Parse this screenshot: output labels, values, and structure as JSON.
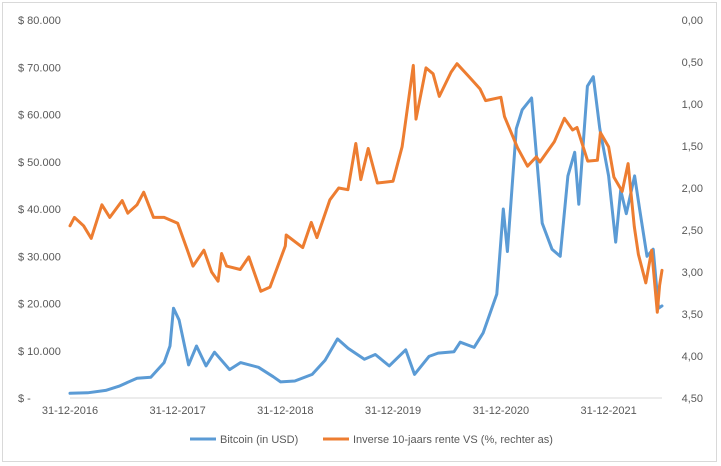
{
  "chart_data": {
    "type": "line",
    "title": "",
    "xlabel": "",
    "ylabel": "",
    "x_tick_labels": [
      "31-12-2016",
      "31-12-2017",
      "31-12-2018",
      "31-12-2019",
      "31-12-2020",
      "31-12-2021"
    ],
    "x_domain": [
      "2016-12-31",
      "2022-06-30"
    ],
    "y_left": {
      "range": [
        0,
        80000
      ],
      "ticks": [
        0,
        10000,
        20000,
        30000,
        40000,
        50000,
        60000,
        70000,
        80000
      ],
      "tick_labels": [
        "$ -",
        "$ 10.000",
        "$ 20.000",
        "$ 30.000",
        "$ 40.000",
        "$ 50.000",
        "$ 60.000",
        "$ 70.000",
        "$ 80.000"
      ]
    },
    "y_right": {
      "range": [
        4.5,
        0
      ],
      "inverted": true,
      "ticks": [
        0,
        0.5,
        1,
        1.5,
        2,
        2.5,
        3,
        3.5,
        4,
        4.5
      ],
      "tick_labels": [
        "0,00",
        "0,50",
        "1,00",
        "1,50",
        "2,00",
        "2,50",
        "3,00",
        "3,50",
        "4,00",
        "4,50"
      ]
    },
    "grid": false,
    "legend_position": "bottom",
    "series": [
      {
        "name": "Bitcoin (in USD)",
        "axis": "left",
        "color": "#5b9bd5",
        "points": [
          [
            "2016-12-31",
            1000
          ],
          [
            "2017-03-01",
            1100
          ],
          [
            "2017-05-01",
            1600
          ],
          [
            "2017-06-15",
            2500
          ],
          [
            "2017-08-15",
            4200
          ],
          [
            "2017-10-01",
            4400
          ],
          [
            "2017-11-15",
            7500
          ],
          [
            "2017-12-05",
            11000
          ],
          [
            "2017-12-17",
            19000
          ],
          [
            "2018-01-05",
            16500
          ],
          [
            "2018-02-06",
            7000
          ],
          [
            "2018-03-05",
            11000
          ],
          [
            "2018-04-06",
            6800
          ],
          [
            "2018-05-05",
            9700
          ],
          [
            "2018-06-25",
            6000
          ],
          [
            "2018-08-01",
            7500
          ],
          [
            "2018-10-01",
            6500
          ],
          [
            "2018-11-20",
            4500
          ],
          [
            "2018-12-15",
            3400
          ],
          [
            "2019-02-01",
            3600
          ],
          [
            "2019-04-01",
            5000
          ],
          [
            "2019-05-15",
            8000
          ],
          [
            "2019-06-26",
            12500
          ],
          [
            "2019-08-01",
            10500
          ],
          [
            "2019-09-25",
            8200
          ],
          [
            "2019-11-01",
            9200
          ],
          [
            "2019-12-18",
            6800
          ],
          [
            "2020-02-12",
            10200
          ],
          [
            "2020-03-13",
            5000
          ],
          [
            "2020-05-01",
            8800
          ],
          [
            "2020-06-01",
            9500
          ],
          [
            "2020-07-25",
            9800
          ],
          [
            "2020-08-15",
            11800
          ],
          [
            "2020-10-01",
            10700
          ],
          [
            "2020-11-01",
            13800
          ],
          [
            "2020-12-17",
            22000
          ],
          [
            "2021-01-08",
            40000
          ],
          [
            "2021-01-22",
            31000
          ],
          [
            "2021-02-21",
            57000
          ],
          [
            "2021-03-13",
            61000
          ],
          [
            "2021-04-14",
            63500
          ],
          [
            "2021-05-20",
            37000
          ],
          [
            "2021-06-22",
            31500
          ],
          [
            "2021-07-20",
            30000
          ],
          [
            "2021-08-15",
            47000
          ],
          [
            "2021-09-07",
            52000
          ],
          [
            "2021-09-21",
            41000
          ],
          [
            "2021-10-20",
            66000
          ],
          [
            "2021-11-09",
            68000
          ],
          [
            "2021-12-01",
            57000
          ],
          [
            "2021-12-31",
            47000
          ],
          [
            "2022-01-24",
            33000
          ],
          [
            "2022-02-10",
            44000
          ],
          [
            "2022-03-01",
            39000
          ],
          [
            "2022-03-29",
            47000
          ],
          [
            "2022-04-15",
            40000
          ],
          [
            "2022-05-10",
            30000
          ],
          [
            "2022-05-31",
            31500
          ],
          [
            "2022-06-13",
            22500
          ],
          [
            "2022-06-18",
            19000
          ],
          [
            "2022-06-30",
            19500
          ]
        ]
      },
      {
        "name": "Inverse 10-jaars rente VS (%, rechter as)",
        "axis": "right",
        "color": "#ed7d31",
        "points": [
          [
            "2016-12-31",
            2.45
          ],
          [
            "2017-01-15",
            2.35
          ],
          [
            "2017-02-15",
            2.45
          ],
          [
            "2017-03-13",
            2.6
          ],
          [
            "2017-04-18",
            2.2
          ],
          [
            "2017-05-15",
            2.35
          ],
          [
            "2017-06-26",
            2.15
          ],
          [
            "2017-07-15",
            2.3
          ],
          [
            "2017-08-15",
            2.2
          ],
          [
            "2017-09-07",
            2.05
          ],
          [
            "2017-10-10",
            2.35
          ],
          [
            "2017-11-15",
            2.35
          ],
          [
            "2017-12-31",
            2.42
          ],
          [
            "2018-01-31",
            2.72
          ],
          [
            "2018-02-21",
            2.93
          ],
          [
            "2018-03-30",
            2.74
          ],
          [
            "2018-04-25",
            3.0
          ],
          [
            "2018-05-17",
            3.11
          ],
          [
            "2018-05-29",
            2.78
          ],
          [
            "2018-06-15",
            2.93
          ],
          [
            "2018-07-31",
            2.97
          ],
          [
            "2018-08-29",
            2.82
          ],
          [
            "2018-10-09",
            3.23
          ],
          [
            "2018-11-09",
            3.18
          ],
          [
            "2018-12-31",
            2.69
          ],
          [
            "2019-01-03",
            2.56
          ],
          [
            "2019-02-28",
            2.71
          ],
          [
            "2019-03-29",
            2.41
          ],
          [
            "2019-04-17",
            2.59
          ],
          [
            "2019-05-31",
            2.14
          ],
          [
            "2019-06-30",
            2.0
          ],
          [
            "2019-07-31",
            2.02
          ],
          [
            "2019-08-27",
            1.47
          ],
          [
            "2019-09-13",
            1.9
          ],
          [
            "2019-10-08",
            1.53
          ],
          [
            "2019-11-08",
            1.94
          ],
          [
            "2019-12-31",
            1.92
          ],
          [
            "2020-01-31",
            1.51
          ],
          [
            "2020-03-09",
            0.54
          ],
          [
            "2020-03-18",
            1.18
          ],
          [
            "2020-04-21",
            0.57
          ],
          [
            "2020-05-15",
            0.64
          ],
          [
            "2020-06-05",
            0.91
          ],
          [
            "2020-07-15",
            0.62
          ],
          [
            "2020-08-04",
            0.52
          ],
          [
            "2020-09-15",
            0.68
          ],
          [
            "2020-10-21",
            0.82
          ],
          [
            "2020-11-09",
            0.96
          ],
          [
            "2020-12-31",
            0.92
          ],
          [
            "2021-01-12",
            1.15
          ],
          [
            "2021-02-25",
            1.52
          ],
          [
            "2021-03-31",
            1.74
          ],
          [
            "2021-04-30",
            1.63
          ],
          [
            "2021-05-12",
            1.69
          ],
          [
            "2021-06-30",
            1.45
          ],
          [
            "2021-08-03",
            1.17
          ],
          [
            "2021-08-31",
            1.31
          ],
          [
            "2021-09-15",
            1.28
          ],
          [
            "2021-10-21",
            1.68
          ],
          [
            "2021-11-23",
            1.67
          ],
          [
            "2021-12-03",
            1.34
          ],
          [
            "2021-12-31",
            1.51
          ],
          [
            "2022-01-18",
            1.87
          ],
          [
            "2022-02-15",
            2.04
          ],
          [
            "2022-03-07",
            1.71
          ],
          [
            "2022-03-28",
            2.46
          ],
          [
            "2022-04-11",
            2.79
          ],
          [
            "2022-05-06",
            3.13
          ],
          [
            "2022-05-26",
            2.74
          ],
          [
            "2022-06-14",
            3.48
          ],
          [
            "2022-06-22",
            3.16
          ],
          [
            "2022-06-30",
            2.98
          ]
        ]
      }
    ]
  }
}
